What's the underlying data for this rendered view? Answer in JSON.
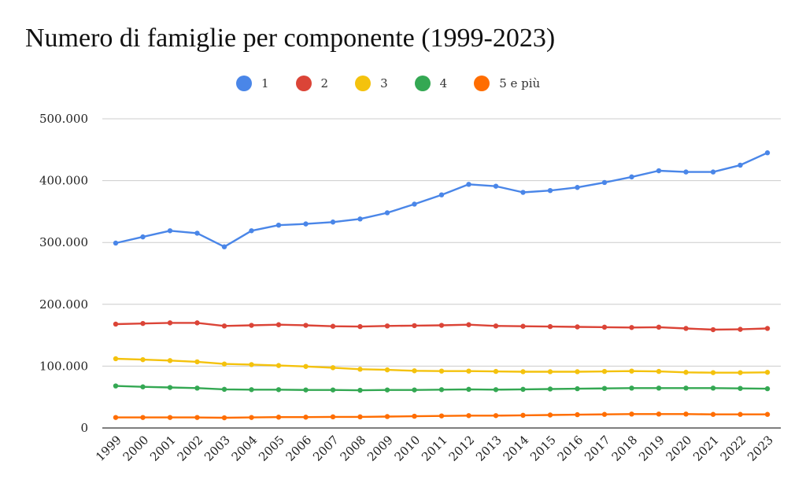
{
  "chart_data": {
    "type": "line",
    "title": "Numero di famiglie per componente (1999-2023)",
    "xlabel": "",
    "ylabel": "",
    "ylim": [
      0,
      500000
    ],
    "yticks": [
      {
        "value": 0,
        "label": "0"
      },
      {
        "value": 100000,
        "label": "100.000"
      },
      {
        "value": 200000,
        "label": "200.000"
      },
      {
        "value": 300000,
        "label": "300.000"
      },
      {
        "value": 400000,
        "label": "400.000"
      },
      {
        "value": 500000,
        "label": "500.000"
      }
    ],
    "grid": true,
    "legend_position": "top",
    "categories": [
      "1999",
      "2000",
      "2001",
      "2002",
      "2003",
      "2004",
      "2005",
      "2006",
      "2007",
      "2008",
      "2009",
      "2010",
      "2011",
      "2012",
      "2013",
      "2014",
      "2015",
      "2016",
      "2017",
      "2018",
      "2019",
      "2020",
      "2021",
      "2022",
      "2023"
    ],
    "series": [
      {
        "name": "1",
        "color": "#4a86e8",
        "values": [
          299000,
          309000,
          319000,
          315000,
          293000,
          319000,
          328000,
          330000,
          333000,
          338000,
          348000,
          362000,
          377000,
          394000,
          391000,
          381000,
          384000,
          389000,
          397000,
          406000,
          416000,
          414000,
          414000,
          425000,
          445000
        ]
      },
      {
        "name": "2",
        "color": "#db4437",
        "values": [
          168000,
          169000,
          170000,
          170000,
          165000,
          166000,
          167000,
          166000,
          164500,
          164000,
          165000,
          165500,
          166000,
          167000,
          165000,
          164500,
          164000,
          163500,
          163000,
          162500,
          163000,
          161000,
          159000,
          159500,
          161000
        ]
      },
      {
        "name": "3",
        "color": "#f4c20d",
        "values": [
          112000,
          110500,
          109000,
          107000,
          103500,
          102500,
          101000,
          99500,
          97500,
          95000,
          94000,
          92500,
          92000,
          92000,
          91500,
          91000,
          91000,
          91000,
          91500,
          92000,
          91500,
          90000,
          89500,
          89500,
          90000
        ]
      },
      {
        "name": "4",
        "color": "#34a853",
        "values": [
          68000,
          66500,
          65500,
          64500,
          62500,
          62000,
          62000,
          61500,
          61500,
          61000,
          61500,
          61500,
          62000,
          62500,
          62000,
          62500,
          63000,
          63500,
          64000,
          64500,
          64500,
          64500,
          64500,
          64000,
          63500
        ]
      },
      {
        "name": "5 e più",
        "color": "#ff6d01",
        "values": [
          17000,
          17000,
          17000,
          17000,
          16500,
          17000,
          17500,
          17500,
          18000,
          18000,
          18500,
          19000,
          19500,
          20000,
          20000,
          20500,
          21000,
          21500,
          22000,
          22500,
          22500,
          22500,
          22000,
          22000,
          22000
        ]
      }
    ]
  }
}
